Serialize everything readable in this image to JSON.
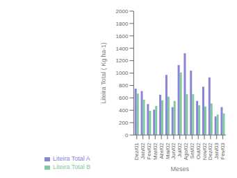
{
  "chart_data": {
    "type": "bar",
    "categories": [
      "Dez/01",
      "Jan/02",
      "Fev/02",
      "Mar/02",
      "Abr/02",
      "Mai/02",
      "Jun/02",
      "Jul/02",
      "Ago/02",
      "Set/02",
      "Out/02",
      "Nov/02",
      "Dez/02",
      "Jan/03",
      "Fev/03"
    ],
    "series": [
      {
        "name": "Liteira Total A",
        "color": "#8884d8",
        "values": [
          750,
          710,
          500,
          410,
          650,
          970,
          450,
          1130,
          1320,
          1040,
          550,
          780,
          930,
          300,
          450
        ]
      },
      {
        "name": "Liteira Total B",
        "color": "#82ca9d",
        "values": [
          670,
          570,
          390,
          470,
          560,
          620,
          550,
          1010,
          660,
          660,
          480,
          460,
          510,
          330,
          350
        ]
      }
    ],
    "xlabel": "Meses",
    "ylabel": "Liteira Total ( Kg ha-1)",
    "ylim": [
      0,
      2000
    ],
    "yticks": [
      0,
      200,
      400,
      600,
      800,
      1000,
      1200,
      1400,
      1600,
      1800,
      2000
    ],
    "grid": false,
    "legend": "lower left"
  }
}
